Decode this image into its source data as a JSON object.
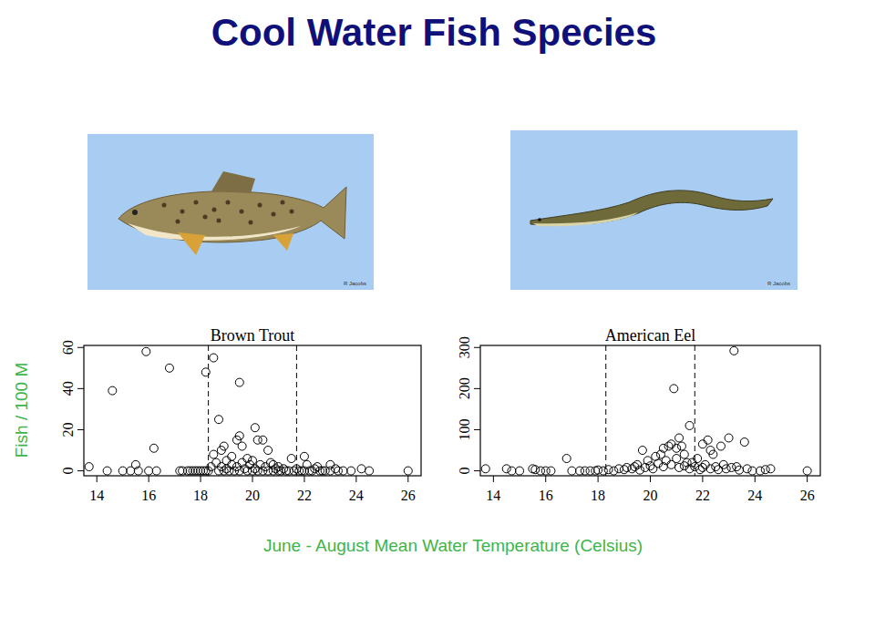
{
  "slide": {
    "title": "Cool Water Fish Species",
    "y_label": "Fish / 100 M",
    "x_label": "June - August Mean Water Temperature (Celsius)",
    "photo_credits": [
      "R Jacobs",
      "R Jacobs"
    ]
  },
  "chart_data": [
    {
      "type": "scatter",
      "title": "Brown Trout",
      "color": "#000000",
      "marker": "circle-open",
      "xlim": [
        13.5,
        26.5
      ],
      "xticks": [
        14,
        16,
        18,
        20,
        22,
        24,
        26
      ],
      "ylim": [
        -2.4,
        61
      ],
      "yticks": [
        0,
        20,
        40,
        60
      ],
      "reference_lines": [
        18.3,
        21.7
      ],
      "x": [
        13.7,
        14.4,
        14.6,
        15.0,
        15.3,
        15.5,
        15.6,
        15.9,
        16.0,
        16.2,
        16.3,
        16.8,
        17.2,
        17.3,
        17.5,
        17.6,
        17.7,
        17.8,
        17.9,
        18.0,
        18.1,
        18.2,
        18.2,
        18.3,
        18.4,
        18.5,
        18.5,
        18.6,
        18.7,
        18.7,
        18.8,
        18.8,
        18.9,
        18.9,
        19.0,
        19.0,
        19.1,
        19.2,
        19.2,
        19.3,
        19.4,
        19.4,
        19.5,
        19.5,
        19.5,
        19.6,
        19.6,
        19.7,
        19.8,
        19.8,
        19.9,
        20.0,
        20.0,
        20.1,
        20.1,
        20.2,
        20.2,
        20.3,
        20.4,
        20.4,
        20.5,
        20.6,
        20.6,
        20.7,
        20.8,
        20.8,
        20.9,
        21.0,
        21.0,
        21.1,
        21.2,
        21.3,
        21.4,
        21.5,
        21.6,
        21.7,
        21.8,
        21.9,
        22.0,
        22.0,
        22.1,
        22.2,
        22.3,
        22.4,
        22.5,
        22.6,
        22.7,
        22.8,
        23.0,
        23.0,
        23.2,
        23.3,
        23.5,
        23.8,
        24.2,
        24.5,
        26.0
      ],
      "values": [
        2,
        0,
        39,
        0,
        0,
        3,
        0,
        58,
        0,
        11,
        0,
        50,
        0,
        0,
        0,
        0,
        0,
        0,
        0,
        0,
        0,
        48,
        0,
        0,
        2,
        55,
        8,
        4,
        25,
        0,
        10,
        2,
        12,
        0,
        5,
        1,
        0,
        3,
        7,
        0,
        15,
        2,
        43,
        17,
        0,
        12,
        4,
        1,
        6,
        0,
        3,
        0,
        5,
        21,
        1,
        15,
        0,
        3,
        15,
        0,
        2,
        10,
        0,
        4,
        3,
        0,
        1,
        0,
        2,
        0,
        1,
        0,
        0,
        6,
        0,
        1,
        0,
        0,
        7,
        0,
        3,
        0,
        0,
        1,
        2,
        0,
        0,
        0,
        3,
        0,
        1,
        0,
        0,
        0,
        1,
        0,
        0
      ]
    },
    {
      "type": "scatter",
      "title": "American Eel",
      "color": "#000000",
      "marker": "circle-open",
      "xlim": [
        13.5,
        26.5
      ],
      "xticks": [
        14,
        16,
        18,
        20,
        22,
        24,
        26
      ],
      "ylim": [
        -12,
        305
      ],
      "yticks": [
        0,
        100,
        200,
        300
      ],
      "reference_lines": [
        18.3,
        21.7
      ],
      "x": [
        13.7,
        14.5,
        14.7,
        15.0,
        15.5,
        15.6,
        15.8,
        16.0,
        16.2,
        16.8,
        17.0,
        17.3,
        17.5,
        17.7,
        17.9,
        18.0,
        18.2,
        18.4,
        18.6,
        18.8,
        19.0,
        19.1,
        19.3,
        19.4,
        19.5,
        19.6,
        19.7,
        19.8,
        19.9,
        20.0,
        20.1,
        20.2,
        20.3,
        20.4,
        20.5,
        20.5,
        20.6,
        20.7,
        20.8,
        20.8,
        20.9,
        21.0,
        21.0,
        21.1,
        21.1,
        21.2,
        21.3,
        21.3,
        21.4,
        21.5,
        21.5,
        21.6,
        21.7,
        21.8,
        21.9,
        22.0,
        22.0,
        22.1,
        22.2,
        22.3,
        22.3,
        22.4,
        22.5,
        22.6,
        22.7,
        22.8,
        22.9,
        23.0,
        23.1,
        23.2,
        23.3,
        23.4,
        23.6,
        23.7,
        23.9,
        24.2,
        24.4,
        24.6,
        26.0
      ],
      "values": [
        5,
        5,
        0,
        0,
        5,
        3,
        0,
        0,
        0,
        30,
        0,
        0,
        0,
        0,
        0,
        2,
        0,
        3,
        0,
        5,
        3,
        8,
        5,
        10,
        15,
        2,
        50,
        8,
        25,
        12,
        5,
        35,
        18,
        40,
        55,
        10,
        25,
        60,
        65,
        15,
        200,
        55,
        30,
        80,
        8,
        60,
        40,
        12,
        20,
        110,
        5,
        20,
        10,
        30,
        3,
        65,
        8,
        15,
        75,
        50,
        5,
        40,
        10,
        3,
        60,
        15,
        5,
        80,
        8,
        292,
        10,
        2,
        70,
        5,
        0,
        0,
        3,
        5,
        0
      ]
    }
  ]
}
